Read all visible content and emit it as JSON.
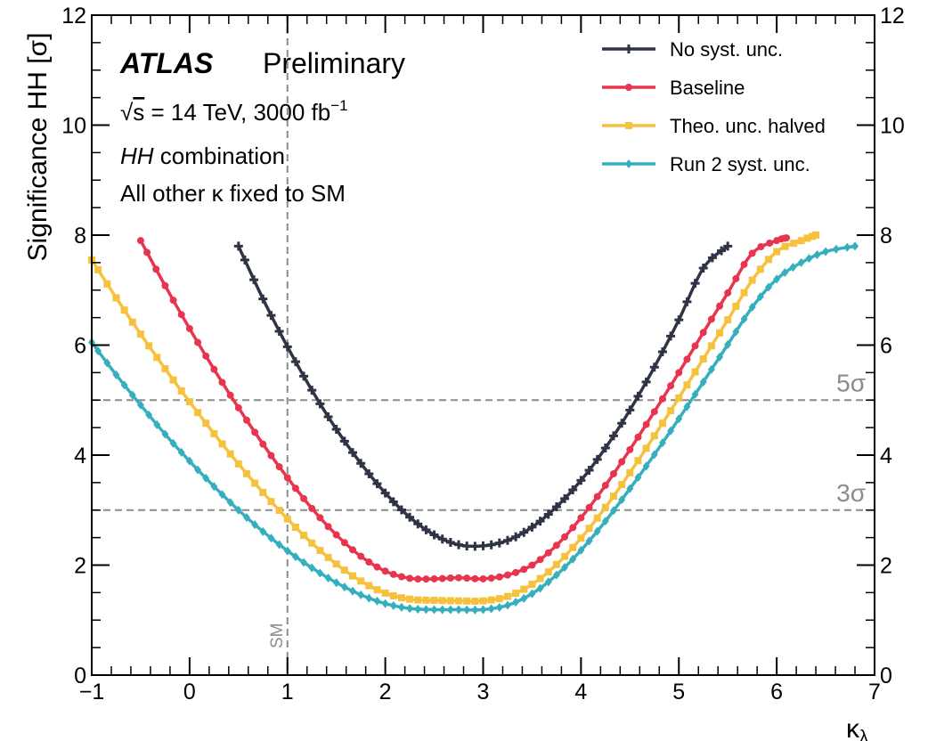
{
  "chart_data": {
    "type": "line",
    "xlabel": "κ",
    "xlabel_sub": "λ",
    "ylabel": "Significance HH [σ]",
    "xlim": [
      -1,
      7
    ],
    "ylim": [
      0,
      12
    ],
    "x_ticks": [
      "−1",
      "0",
      "1",
      "2",
      "3",
      "4",
      "5",
      "6",
      "7"
    ],
    "y_ticks": [
      "0",
      "2",
      "4",
      "6",
      "8",
      "10",
      "12"
    ],
    "grid": false,
    "legend_position": "top-right",
    "annotations": {
      "experiment": "ATLAS",
      "status": "Preliminary",
      "energy_sqrt": "√",
      "energy_s": "s",
      "energy_rest": " = 14 TeV, 3000 fb",
      "energy_sup": "−1",
      "combination_italic": "HH",
      "combination_rest": " combination",
      "fixed_note": "All other κ fixed to SM"
    },
    "reference_lines": [
      {
        "axis": "y",
        "value": 5,
        "label": "5σ"
      },
      {
        "axis": "y",
        "value": 3,
        "label": "3σ"
      },
      {
        "axis": "x",
        "value": 1,
        "label": "SM"
      }
    ],
    "series": [
      {
        "name": "No syst. unc.",
        "color": "#2e3443",
        "marker": "plus",
        "x": [
          0.5,
          0.75,
          1.0,
          1.25,
          1.5,
          1.75,
          2.0,
          2.25,
          2.5,
          2.75,
          3.0,
          3.25,
          3.5,
          3.75,
          4.0,
          4.25,
          4.5,
          4.75,
          5.0,
          5.25,
          5.5
        ],
        "y": [
          7.8,
          6.84,
          5.97,
          5.18,
          4.47,
          3.85,
          3.31,
          2.87,
          2.55,
          2.37,
          2.35,
          2.45,
          2.69,
          3.06,
          3.54,
          4.13,
          4.82,
          5.6,
          6.46,
          7.4,
          7.8
        ]
      },
      {
        "name": "Baseline",
        "color": "#e8344e",
        "marker": "circle",
        "x": [
          -0.5,
          -0.25,
          0.0,
          0.25,
          0.5,
          0.75,
          1.0,
          1.25,
          1.5,
          1.75,
          2.0,
          2.25,
          2.5,
          2.75,
          3.0,
          3.25,
          3.5,
          3.75,
          4.0,
          4.25,
          4.5,
          4.75,
          5.0,
          5.25,
          5.5,
          5.75,
          6.0,
          6.1
        ],
        "y": [
          7.9,
          7.08,
          6.3,
          5.56,
          4.86,
          4.2,
          3.59,
          3.03,
          2.55,
          2.16,
          1.89,
          1.76,
          1.75,
          1.77,
          1.75,
          1.82,
          2.0,
          2.36,
          2.86,
          3.45,
          4.1,
          4.79,
          5.5,
          6.23,
          6.95,
          7.67,
          7.9,
          7.95
        ]
      },
      {
        "name": "Theo. unc. halved",
        "color": "#f6c23e",
        "marker": "square",
        "x": [
          -1.0,
          -0.75,
          -0.5,
          -0.25,
          0.0,
          0.25,
          0.5,
          0.75,
          1.0,
          1.25,
          1.5,
          1.75,
          2.0,
          2.25,
          2.5,
          2.75,
          3.0,
          3.25,
          3.5,
          3.75,
          4.0,
          4.25,
          4.5,
          4.75,
          5.0,
          5.25,
          5.5,
          5.75,
          6.0,
          6.25,
          6.4
        ],
        "y": [
          7.55,
          6.86,
          6.2,
          5.57,
          4.97,
          4.39,
          3.84,
          3.32,
          2.84,
          2.4,
          2.02,
          1.71,
          1.49,
          1.38,
          1.36,
          1.35,
          1.35,
          1.43,
          1.65,
          2.01,
          2.49,
          3.05,
          3.68,
          4.35,
          5.04,
          5.75,
          6.46,
          7.18,
          7.7,
          7.9,
          8.0
        ]
      },
      {
        "name": "Run 2 syst. unc.",
        "color": "#35aebe",
        "marker": "diamond",
        "x": [
          -1.0,
          -0.75,
          -0.5,
          -0.25,
          0.0,
          0.25,
          0.5,
          0.75,
          1.0,
          1.25,
          1.5,
          1.75,
          2.0,
          2.25,
          2.5,
          2.75,
          3.0,
          3.25,
          3.5,
          3.75,
          4.0,
          4.25,
          4.5,
          4.75,
          5.0,
          5.25,
          5.5,
          5.75,
          6.0,
          6.25,
          6.5,
          6.8
        ],
        "y": [
          6.05,
          5.46,
          4.91,
          4.38,
          3.89,
          3.43,
          3.0,
          2.61,
          2.26,
          1.95,
          1.68,
          1.46,
          1.3,
          1.21,
          1.19,
          1.19,
          1.19,
          1.27,
          1.48,
          1.82,
          2.27,
          2.8,
          3.39,
          4.01,
          4.66,
          5.33,
          6.01,
          6.69,
          7.2,
          7.5,
          7.7,
          7.8
        ]
      }
    ]
  }
}
